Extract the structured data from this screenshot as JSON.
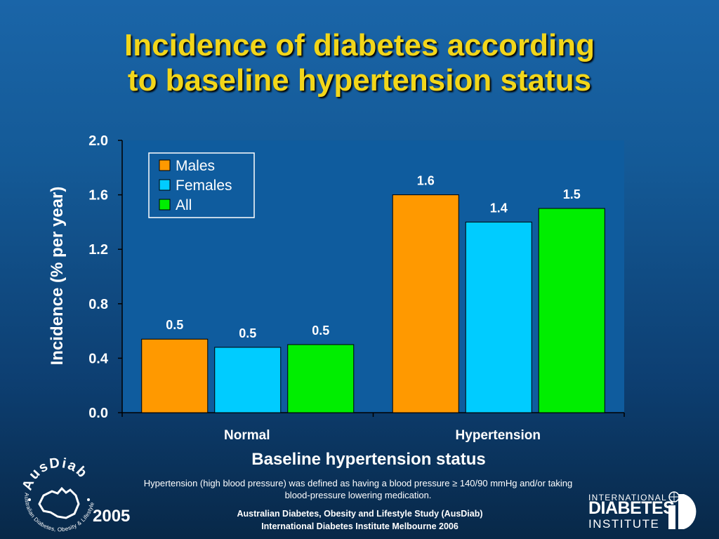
{
  "title": {
    "line1": "Incidence of diabetes according",
    "line2": "to baseline hypertension status"
  },
  "footnote": "Hypertension (high blood pressure) was defined as having a blood pressure ≥ 140/90 mmHg and/or taking blood-pressure lowering medication.",
  "source": {
    "line1": "Australian Diabetes, Obesity and Lifestyle Study (AusDiab)",
    "line2": "International Diabetes Institute Melbourne 2006"
  },
  "year": "2005",
  "logos": {
    "ausdiab": {
      "name": "AusDiab",
      "tagline": "Australian Diabetes, Obesity & Lifestyle Study"
    },
    "idi": {
      "line1": "INTERNATIONAL",
      "line2": "DIABETES",
      "line3": "INSTITUTE"
    }
  },
  "colors": {
    "background": "#155a98",
    "plot_area": "#0f5c9e",
    "title": "#f2d61a",
    "males": "#ff9900",
    "females": "#00ccff",
    "all": "#00ee00"
  },
  "chart_data": {
    "type": "bar",
    "categories": [
      "Normal",
      "Hypertension"
    ],
    "series": [
      {
        "name": "Males",
        "values": [
          0.54,
          1.6
        ],
        "labels": [
          "0.5",
          "1.6"
        ],
        "color": "#ff9900"
      },
      {
        "name": "Females",
        "values": [
          0.48,
          1.4
        ],
        "labels": [
          "0.5",
          "1.4"
        ],
        "color": "#00ccff"
      },
      {
        "name": "All",
        "values": [
          0.5,
          1.5
        ],
        "labels": [
          "0.5",
          "1.5"
        ],
        "color": "#00ee00"
      }
    ],
    "title": "",
    "xlabel": "Baseline hypertension status",
    "ylabel": "Incidence (% per year)",
    "ylim": [
      0,
      2.0
    ],
    "yticks": [
      "0.0",
      "0.4",
      "0.8",
      "1.2",
      "1.6",
      "2.0"
    ],
    "grid": false,
    "legend": "top-left"
  }
}
